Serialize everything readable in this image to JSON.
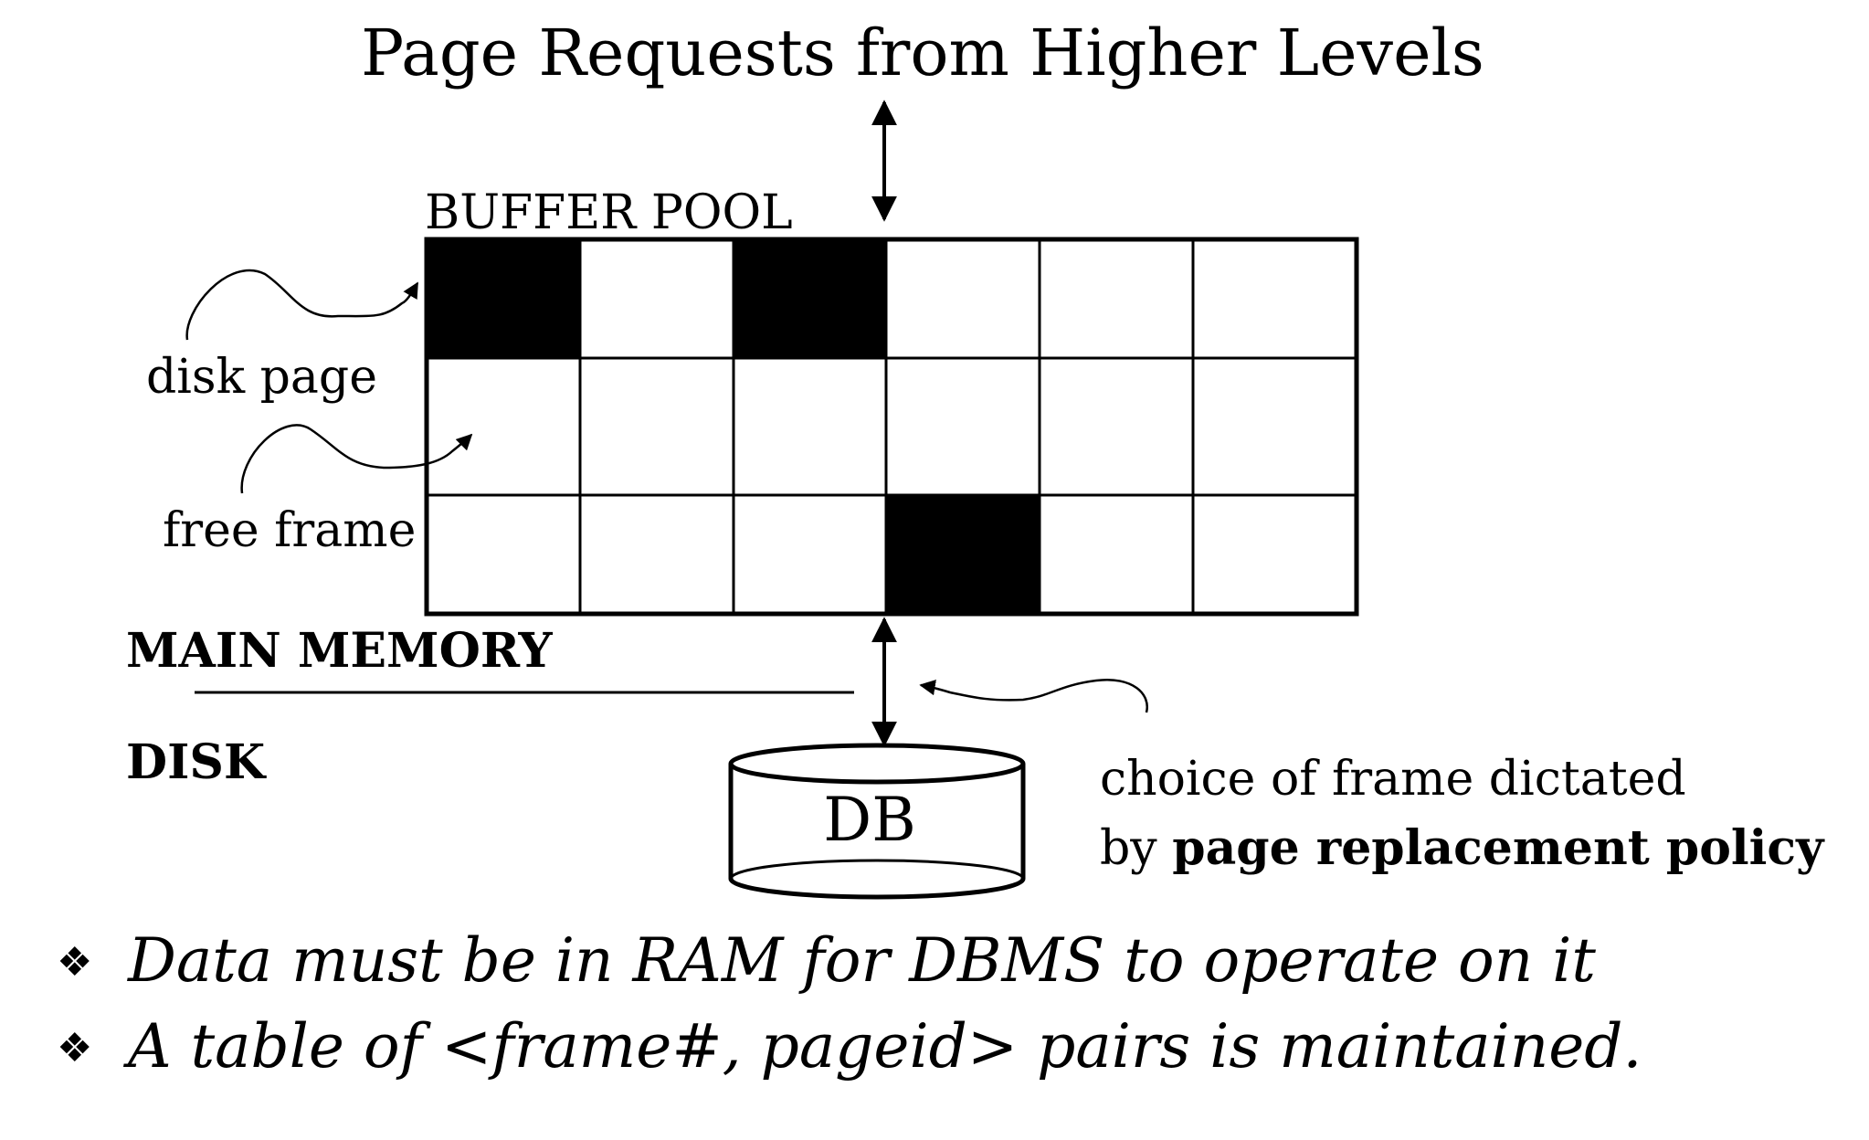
{
  "title": "Page Requests from Higher Levels",
  "buffer_pool": {
    "label": "BUFFER POOL",
    "rows": 3,
    "cols": 6,
    "filled_cells": [
      [
        0,
        0
      ],
      [
        0,
        2
      ],
      [
        2,
        3
      ]
    ]
  },
  "annotations": {
    "disk_page": "disk page",
    "free_frame": "free frame",
    "policy_line1": "choice of frame dictated",
    "policy_line2_prefix": "by ",
    "policy_line2_bold": "page replacement policy"
  },
  "levels": {
    "main_memory": "MAIN MEMORY",
    "disk": "DISK"
  },
  "database": {
    "label": "DB"
  },
  "bullets": [
    {
      "marker": "❖",
      "text": "Data must be in RAM for DBMS to operate on it"
    },
    {
      "marker": "❖",
      "text": "A table of <frame#, pageid> pairs is maintained."
    }
  ],
  "colors": {
    "ink": "#000000",
    "paper": "#ffffff"
  }
}
